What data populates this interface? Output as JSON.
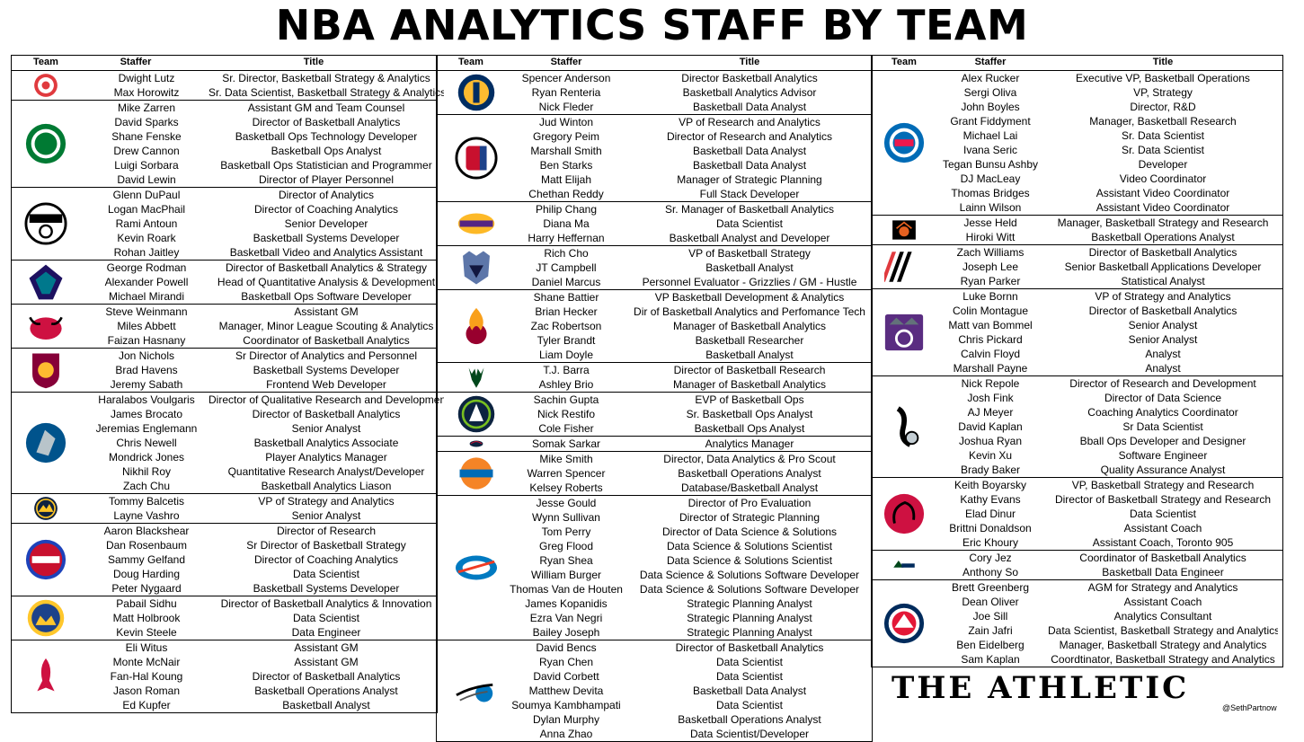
{
  "title": "NBA ANALYTICS STAFF BY TEAM",
  "headers": {
    "team": "Team",
    "staffer": "Staffer",
    "title": "Title"
  },
  "brand": "THE ATHLETIC",
  "credit": "@SethPartnow",
  "columns": [
    {
      "teams": [
        {
          "team": "hawks",
          "icon": "hawks-logo-icon",
          "colors": [
            "#e03a3e",
            "#ffffff"
          ],
          "staff": [
            [
              "Dwight Lutz",
              "Sr. Director, Basketball Strategy & Analytics"
            ],
            [
              "Max Horowitz",
              "Sr. Data Scientist, Basketball Strategy & Analytics"
            ]
          ]
        },
        {
          "team": "celtics",
          "icon": "celtics-logo-icon",
          "colors": [
            "#007a33",
            "#ffffff"
          ],
          "staff": [
            [
              "Mike Zarren",
              "Assistant GM and Team Counsel"
            ],
            [
              "David Sparks",
              "Director of Basketball Analytics"
            ],
            [
              "Shane Fenske",
              "Basketball Ops Technology Developer"
            ],
            [
              "Drew Cannon",
              "Basketball Ops Analyst"
            ],
            [
              "Luigi Sorbara",
              "Basketball Ops Statistician and Programmer"
            ],
            [
              "David Lewin",
              "Director of Player Personnel"
            ]
          ]
        },
        {
          "team": "nets",
          "icon": "nets-logo-icon",
          "colors": [
            "#000000",
            "#ffffff"
          ],
          "staff": [
            [
              "Glenn DuPaul",
              "Director of Analytics"
            ],
            [
              "Logan MacPhail",
              "Director of Coaching Analytics"
            ],
            [
              "Rami Antoun",
              "Senior Developer"
            ],
            [
              "Kevin Roark",
              "Basketball Systems Developer"
            ],
            [
              "Rohan Jaitley",
              "Basketball Video and Analytics Assistant"
            ]
          ]
        },
        {
          "team": "hornets",
          "icon": "hornets-logo-icon",
          "colors": [
            "#1d1160",
            "#00788c"
          ],
          "staff": [
            [
              "George Rodman",
              "Director of Basketball Analytics & Strategy"
            ],
            [
              "Alexander Powell",
              "Head of Quantitative Analysis & Development"
            ],
            [
              "Michael Mirandi",
              "Basketball Ops Software Developer"
            ]
          ]
        },
        {
          "team": "bulls",
          "icon": "bulls-logo-icon",
          "colors": [
            "#ce1141",
            "#000000"
          ],
          "staff": [
            [
              "Steve Weinmann",
              "Assistant GM"
            ],
            [
              "Miles Abbett",
              "Manager, Minor League Scouting & Analytics"
            ],
            [
              "Faizan Hasnany",
              "Coordinator of Basketball Analytics"
            ]
          ]
        },
        {
          "team": "cavaliers",
          "icon": "cavaliers-logo-icon",
          "colors": [
            "#860038",
            "#fdbb30"
          ],
          "staff": [
            [
              "Jon Nichols",
              "Sr Director of Analytics and Personnel"
            ],
            [
              "Brad Havens",
              "Basketball Systems Developer"
            ],
            [
              "Jeremy Sabath",
              "Frontend Web Developer"
            ]
          ]
        },
        {
          "team": "mavericks",
          "icon": "mavericks-logo-icon",
          "colors": [
            "#00538c",
            "#b8c4ca"
          ],
          "staff": [
            [
              "Haralabos Voulgaris",
              "Director of Qualitative Research and Development"
            ],
            [
              "James Brocato",
              "Director of Basketball Analytics"
            ],
            [
              "Jeremias Englemann",
              "Senior Analyst"
            ],
            [
              "Chris Newell",
              "Basketball Analytics Associate"
            ],
            [
              "Mondrick Jones",
              "Player Analytics Manager"
            ],
            [
              "Nikhil Roy",
              "Quantitative Research Analyst/Developer"
            ],
            [
              "Zach Chu",
              "Basketball Analytics Liason"
            ]
          ]
        },
        {
          "team": "nuggets",
          "icon": "nuggets-logo-icon",
          "colors": [
            "#0e2240",
            "#fec524"
          ],
          "staff": [
            [
              "Tommy Balcetis",
              "VP of Strategy and Analytics"
            ],
            [
              "Layne Vashro",
              "Senior Analyst"
            ]
          ]
        },
        {
          "team": "pistons",
          "icon": "pistons-logo-icon",
          "colors": [
            "#c8102e",
            "#1d42ba"
          ],
          "staff": [
            [
              "Aaron Blackshear",
              "Director of Research"
            ],
            [
              "Dan Rosenbaum",
              "Sr Director of Basketball Strategy"
            ],
            [
              "Sammy Gelfand",
              "Director of Coaching Analytics"
            ],
            [
              "Doug Harding",
              "Data Scientist"
            ],
            [
              "Peter Nygaard",
              "Basketball Systems Developer"
            ]
          ]
        },
        {
          "team": "warriors",
          "icon": "warriors-logo-icon",
          "colors": [
            "#1d428a",
            "#ffc72c"
          ],
          "staff": [
            [
              "Pabail Sidhu",
              "Director of Basketball Analytics & Innovation"
            ],
            [
              "Matt Holbrook",
              "Data Scientist"
            ],
            [
              "Kevin Steele",
              "Data Engineer"
            ]
          ]
        },
        {
          "team": "rockets",
          "icon": "rockets-logo-icon",
          "colors": [
            "#ce1141",
            "#c4ced4"
          ],
          "staff": [
            [
              "Eli Witus",
              "Assistant GM"
            ],
            [
              "Monte McNair",
              "Assistant GM"
            ],
            [
              "Fan-Hal Koung",
              "Director of Basketball Analytics"
            ],
            [
              "Jason Roman",
              "Basketball Operations Analyst"
            ],
            [
              "Ed Kupfer",
              "Basketball Analyst"
            ]
          ]
        }
      ]
    },
    {
      "teams": [
        {
          "team": "pacers",
          "icon": "pacers-logo-icon",
          "colors": [
            "#002d62",
            "#fdbb30"
          ],
          "staff": [
            [
              "Spencer Anderson",
              "Director Basketball Analytics"
            ],
            [
              "Ryan Renteria",
              "Basketball Analytics Advisor"
            ],
            [
              "Nick Fleder",
              "Basketball Data Analyst"
            ]
          ]
        },
        {
          "team": "clippers",
          "icon": "clippers-logo-icon",
          "colors": [
            "#c8102e",
            "#1d428a"
          ],
          "staff": [
            [
              "Jud Winton",
              "VP of Research and Analytics"
            ],
            [
              "Gregory Peim",
              "Director of Research and Analytics"
            ],
            [
              "Marshall Smith",
              "Basketball Data Analyst"
            ],
            [
              "Ben Starks",
              "Basketball Data Analyst"
            ],
            [
              "Matt Elijah",
              "Manager of Strategic Planning"
            ],
            [
              "Chethan Reddy",
              "Full Stack Developer"
            ]
          ]
        },
        {
          "team": "lakers",
          "icon": "lakers-logo-icon",
          "colors": [
            "#552583",
            "#fdb927"
          ],
          "staff": [
            [
              "Philip Chang",
              "Sr. Manager of Basketball Analytics"
            ],
            [
              "Diana Ma",
              "Data Scientist"
            ],
            [
              "Harry Heffernan",
              "Basketball Analyst and Developer"
            ]
          ]
        },
        {
          "team": "grizzlies",
          "icon": "grizzlies-logo-icon",
          "colors": [
            "#5d76a9",
            "#12173f"
          ],
          "staff": [
            [
              "Rich Cho",
              "VP of Basketball Strategy"
            ],
            [
              "JT Campbell",
              "Basketball Analyst"
            ],
            [
              "Daniel Marcus",
              "Personnel Evaluator - Grizzlies / GM - Hustle"
            ]
          ]
        },
        {
          "team": "heat",
          "icon": "heat-logo-icon",
          "colors": [
            "#98002e",
            "#f9a01b"
          ],
          "staff": [
            [
              "Shane Battier",
              "VP Basketball Development & Analytics"
            ],
            [
              "Brian Hecker",
              "Dir of Basketball Analytics and Perfomance Tech"
            ],
            [
              "Zac Robertson",
              "Manager of Basketball Analytics"
            ],
            [
              "Tyler Brandt",
              "Basketball Researcher"
            ],
            [
              "Liam Doyle",
              "Basketball Analyst"
            ]
          ]
        },
        {
          "team": "bucks",
          "icon": "bucks-logo-icon",
          "colors": [
            "#00471b",
            "#eee1c6"
          ],
          "staff": [
            [
              "T.J. Barra",
              "Director of Basketball Research"
            ],
            [
              "Ashley Brio",
              "Manager of Basketball Analytics"
            ]
          ]
        },
        {
          "team": "timberwolves",
          "icon": "timberwolves-logo-icon",
          "colors": [
            "#0c2340",
            "#78be20"
          ],
          "staff": [
            [
              "Sachin Gupta",
              "EVP of Basketball Ops"
            ],
            [
              "Nick Restifo",
              "Sr. Basketball Ops Analyst"
            ],
            [
              "Cole Fisher",
              "Basketball Ops Analyst"
            ]
          ]
        },
        {
          "team": "pelicans",
          "icon": "pelicans-logo-icon",
          "colors": [
            "#0c2340",
            "#c8102e"
          ],
          "staff": [
            [
              "Somak Sarkar",
              "Analytics Manager"
            ]
          ]
        },
        {
          "team": "knicks",
          "icon": "knicks-logo-icon",
          "colors": [
            "#006bb6",
            "#f58426"
          ],
          "staff": [
            [
              "Mike Smith",
              "Director, Data Analytics & Pro Scout"
            ],
            [
              "Warren Spencer",
              "Basketball Operations Analyst"
            ],
            [
              "Kelsey Roberts",
              "Database/Basketball Analyst"
            ]
          ]
        },
        {
          "team": "thunder",
          "icon": "thunder-logo-icon",
          "colors": [
            "#007ac1",
            "#ef3b24"
          ],
          "staff": [
            [
              "Jesse Gould",
              "Director of Pro Evaluation"
            ],
            [
              "Wynn Sullivan",
              "Director of Strategic Planning"
            ],
            [
              "Tom Perry",
              "Director of Data Science & Solutions"
            ],
            [
              "Greg Flood",
              "Data Science & Solutions Scientist"
            ],
            [
              "Ryan Shea",
              "Data Science & Solutions Scientist"
            ],
            [
              "William Burger",
              "Data Science & Solutions Software Developer"
            ],
            [
              "Thomas Van de Houten",
              "Data Science & Solutions Software Developer"
            ],
            [
              "James Kopanidis",
              "Strategic Planning Analyst"
            ],
            [
              "Ezra Van Negri",
              "Strategic Planning Analyst"
            ],
            [
              "Bailey Joseph",
              "Strategic Planning Analyst"
            ]
          ]
        },
        {
          "team": "magic",
          "icon": "magic-logo-icon",
          "colors": [
            "#0077c0",
            "#000000"
          ],
          "staff": [
            [
              "David Bencs",
              "Director of Basketball Analytics"
            ],
            [
              "Ryan Chen",
              "Data Scientist"
            ],
            [
              "David Corbett",
              "Data Scientist"
            ],
            [
              "Matthew Devita",
              "Basketball Data Analyst"
            ],
            [
              "Soumya Kambhampati",
              "Data Scientist"
            ],
            [
              "Dylan Murphy",
              "Basketball Operations Analyst"
            ],
            [
              "Anna Zhao",
              "Data Scientist/Developer"
            ]
          ]
        }
      ]
    },
    {
      "teams": [
        {
          "team": "76ers",
          "icon": "sixers-logo-icon",
          "colors": [
            "#006bb6",
            "#ed174c"
          ],
          "staff": [
            [
              "Alex Rucker",
              "Executive VP, Basketball Operations"
            ],
            [
              "Sergi Oliva",
              "VP, Strategy"
            ],
            [
              "John Boyles",
              "Director, R&D"
            ],
            [
              "Grant Fiddyment",
              "Manager, Basketball Research"
            ],
            [
              "Michael Lai",
              "Sr. Data Scientist"
            ],
            [
              "Ivana Seric",
              "Sr. Data Scientist"
            ],
            [
              "Tegan Bunsu Ashby",
              "Developer"
            ],
            [
              "DJ MacLeay",
              "Video Coordinator"
            ],
            [
              "Thomas Bridges",
              "Assistant Video Coordinator"
            ],
            [
              "Lainn Wilson",
              "Assistant Video Coordinator"
            ]
          ]
        },
        {
          "team": "suns",
          "icon": "suns-logo-icon",
          "colors": [
            "#1d1160",
            "#e56020"
          ],
          "staff": [
            [
              "Jesse Held",
              "Manager, Basketball Strategy and Research"
            ],
            [
              "Hiroki Witt",
              "Basketball Operations Analyst"
            ]
          ]
        },
        {
          "team": "trail-blazers",
          "icon": "trail-blazers-logo-icon",
          "colors": [
            "#e03a3e",
            "#000000"
          ],
          "staff": [
            [
              "Zach Williams",
              "Director of Basketball Analytics"
            ],
            [
              "Joseph Lee",
              "Senior Basketball Applications Developer"
            ],
            [
              "Ryan Parker",
              "Statistical Analyst"
            ]
          ]
        },
        {
          "team": "kings",
          "icon": "kings-logo-icon",
          "colors": [
            "#5a2d81",
            "#63727a"
          ],
          "staff": [
            [
              "Luke Bornn",
              "VP of Strategy and Analytics"
            ],
            [
              "Colin Montague",
              "Director of Basketball Analytics"
            ],
            [
              "Matt van Bommel",
              "Senior Analyst"
            ],
            [
              "Chris Pickard",
              "Senior Analyst"
            ],
            [
              "Calvin Floyd",
              "Analyst"
            ],
            [
              "Marshall Payne",
              "Analyst"
            ]
          ]
        },
        {
          "team": "spurs",
          "icon": "spurs-logo-icon",
          "colors": [
            "#000000",
            "#c4ced4"
          ],
          "staff": [
            [
              "Nick Repole",
              "Director of Research and Development"
            ],
            [
              "Josh Fink",
              "Director of Data Science"
            ],
            [
              "AJ Meyer",
              "Coaching Analytics Coordinator"
            ],
            [
              "David Kaplan",
              "Sr Data Scientist"
            ],
            [
              "Joshua Ryan",
              "Bball Ops Developer and Designer"
            ],
            [
              "Kevin Xu",
              "Software Engineer"
            ],
            [
              "Brady Baker",
              "Quality Assurance Analyst"
            ]
          ]
        },
        {
          "team": "raptors",
          "icon": "raptors-logo-icon",
          "colors": [
            "#ce1141",
            "#000000"
          ],
          "staff": [
            [
              "Keith Boyarsky",
              "VP, Basketball Strategy and Research"
            ],
            [
              "Kathy Evans",
              "Director of Basketball Strategy and Research"
            ],
            [
              "Elad Dinur",
              "Data Scientist"
            ],
            [
              "Brittni Donaldson",
              "Assistant Coach"
            ],
            [
              "Eric Khoury",
              "Assistant Coach, Toronto 905"
            ]
          ]
        },
        {
          "team": "jazz",
          "icon": "jazz-logo-icon",
          "colors": [
            "#002b5c",
            "#00471b"
          ],
          "staff": [
            [
              "Cory Jez",
              "Coordinator of Basketball Analytics"
            ],
            [
              "Anthony So",
              "Basketball Data Engineer"
            ]
          ]
        },
        {
          "team": "wizards",
          "icon": "wizards-logo-icon",
          "colors": [
            "#002b5c",
            "#e31837"
          ],
          "staff": [
            [
              "Brett Greenberg",
              "AGM for Strategy and Analytics"
            ],
            [
              "Dean Oliver",
              "Assistant Coach"
            ],
            [
              "Joe Sill",
              "Analytics Consultant"
            ],
            [
              "Zain Jafri",
              "Data Scientist, Basketball Strategy and Analytics"
            ],
            [
              "Ben Eidelberg",
              "Manager, Basketball Strategy and Analytics"
            ],
            [
              "Sam Kaplan",
              "Coordtinator, Basketball Strategy and Analytics"
            ]
          ]
        }
      ]
    }
  ]
}
